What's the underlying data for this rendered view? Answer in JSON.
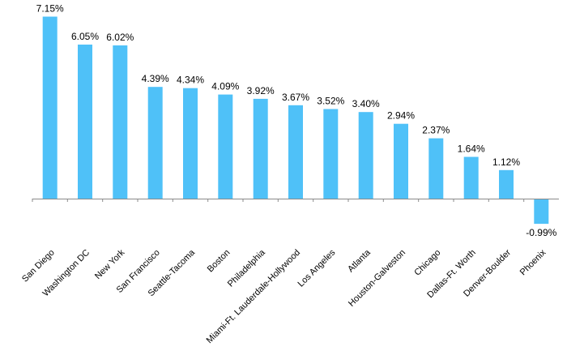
{
  "chart_data": {
    "type": "bar",
    "categories": [
      "San Diego",
      "Washington DC",
      "New York",
      "San Francisco",
      "Seattle-Tacoma",
      "Boston",
      "Philadelphia",
      "Miami-Ft. Lauderdale-Hollywood",
      "Los Angeles",
      "Atlanta",
      "Houston-Galveston",
      "Chicago",
      "Dallas-Ft. Worth",
      "Denver-Boulder",
      "Phoenix"
    ],
    "values": [
      7.15,
      6.05,
      6.02,
      4.39,
      4.34,
      4.09,
      3.92,
      3.67,
      3.52,
      3.4,
      2.94,
      2.37,
      1.64,
      1.12,
      -0.99
    ],
    "value_labels": [
      "7.15%",
      "6.05%",
      "6.02%",
      "4.39%",
      "4.34%",
      "4.09%",
      "3.92%",
      "3.67%",
      "3.52%",
      "3.40%",
      "2.94%",
      "2.37%",
      "1.64%",
      "1.12%",
      "-0.99%"
    ],
    "title": "",
    "xlabel": "",
    "ylabel": "",
    "ylim": [
      -1.2,
      7.4
    ],
    "grid": false,
    "bar_color": "#4FC1F8",
    "axis_color": "#8A8A8A"
  }
}
